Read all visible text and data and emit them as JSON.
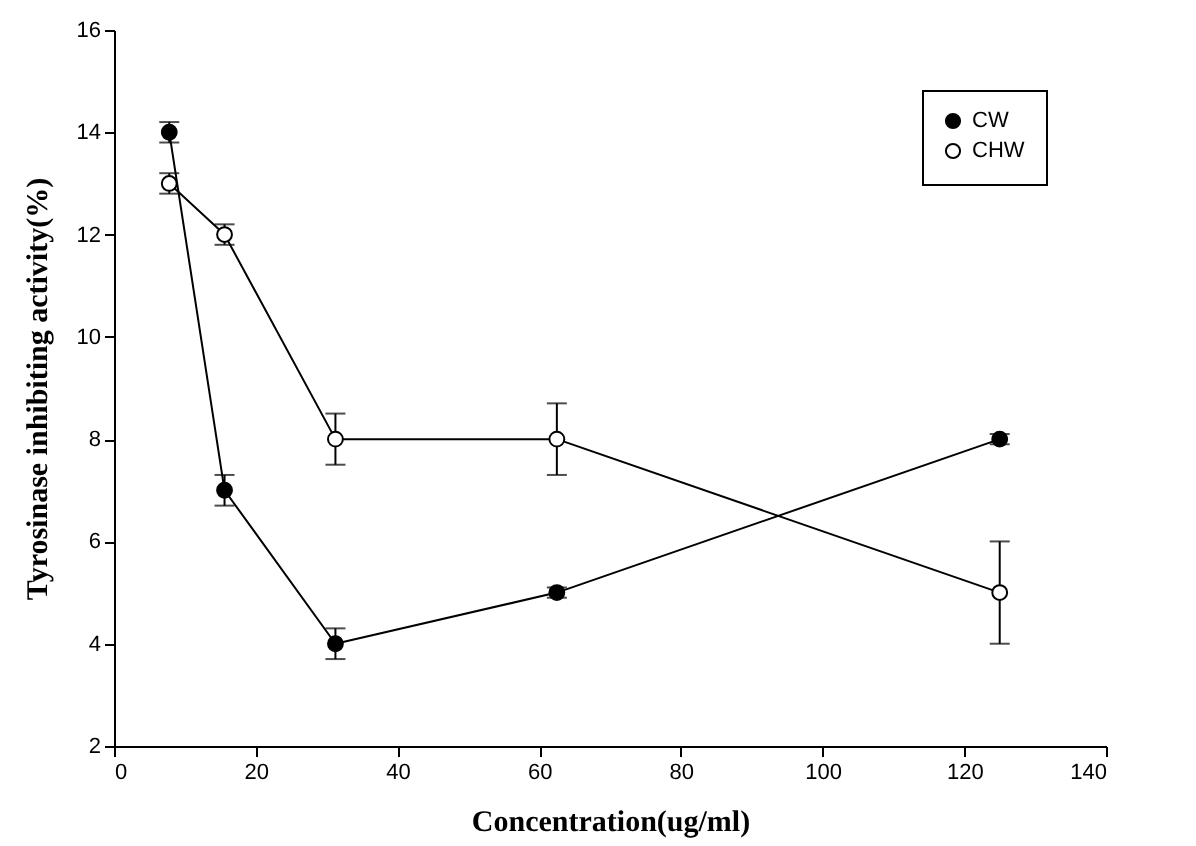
{
  "chart_data": {
    "type": "line",
    "xlabel": "Concentration(ug/ml)",
    "ylabel": "Tyrosinase inhibiting activity(%)",
    "x": [
      7.8,
      15.6,
      31.25,
      62.5,
      125
    ],
    "series": [
      {
        "name": "CW",
        "color": "#000000",
        "values": [
          14,
          7,
          4,
          5,
          8
        ],
        "errors": [
          0.2,
          0.3,
          0.3,
          0.1,
          0.1
        ]
      },
      {
        "name": "CHW",
        "color": "#000000",
        "values": [
          13,
          12,
          8,
          8,
          5
        ],
        "errors": [
          0.2,
          0.2,
          0.5,
          0.7,
          1.0
        ]
      }
    ],
    "xlim": [
      0,
      140
    ],
    "xticks": [
      0,
      20,
      40,
      60,
      80,
      100,
      120,
      140
    ],
    "ylim": [
      2,
      16
    ],
    "yticks": [
      2,
      4,
      6,
      8,
      10,
      12,
      14,
      16
    ],
    "grid": false,
    "legend": "top right",
    "marker": "circle",
    "line_style": "solid"
  }
}
